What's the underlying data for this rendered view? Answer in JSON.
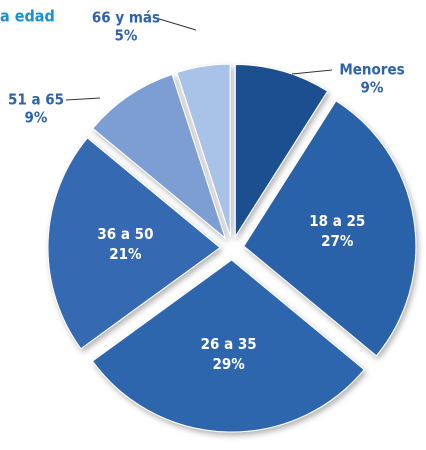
{
  "chart_data": {
    "type": "pie",
    "title": "a edad",
    "categories": [
      "Menores",
      "18 a 25",
      "26 a 35",
      "36 a 50",
      "51 a 65",
      "66 y más"
    ],
    "values": [
      9,
      27,
      29,
      21,
      9,
      5
    ],
    "value_labels": [
      "9%",
      "27%",
      "29%",
      "21%",
      "9%",
      "5%"
    ],
    "colors": [
      "#1d4f8f",
      "#2c62aa",
      "#2f66ae",
      "#3569b1",
      "#7d9ed3",
      "#a9c2e8"
    ]
  }
}
